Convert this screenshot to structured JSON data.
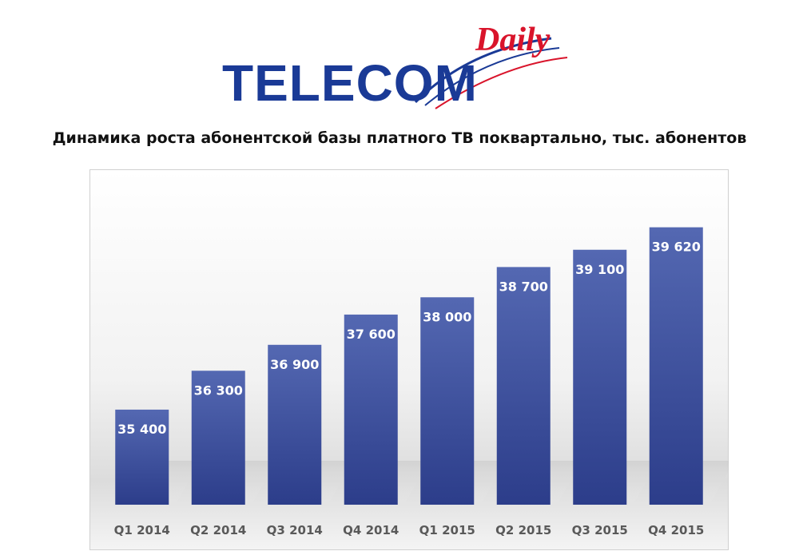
{
  "logo": {
    "brand": "TELECOM",
    "script": "Daily",
    "colors": {
      "brand": "#1a3a96",
      "script": "#d9142b"
    }
  },
  "header": {
    "title": "Динамика роста абонентской базы платного ТВ поквартально, тыс. абонентов"
  },
  "chart_data": {
    "type": "bar",
    "title": "Динамика роста абонентской базы платного ТВ поквартально, тыс. абонентов",
    "xlabel": "",
    "ylabel": "",
    "categories": [
      "Q1 2014",
      "Q2 2014",
      "Q3 2014",
      "Q4 2014",
      "Q1 2015",
      "Q2 2015",
      "Q3 2015",
      "Q4 2015"
    ],
    "values": [
      35400,
      36300,
      36900,
      37600,
      38000,
      38700,
      39100,
      39620
    ],
    "value_labels": [
      "35 400",
      "36 300",
      "36 900",
      "37 600",
      "38 000",
      "38 700",
      "39 100",
      "39 620"
    ],
    "ylim": [
      33200,
      40500
    ],
    "grid": false,
    "legend": "none",
    "colors": {
      "bar_top": "#5468b2",
      "bar_bottom": "#2c3d8a",
      "label": "#ffffff",
      "axis_label": "#595959"
    }
  }
}
